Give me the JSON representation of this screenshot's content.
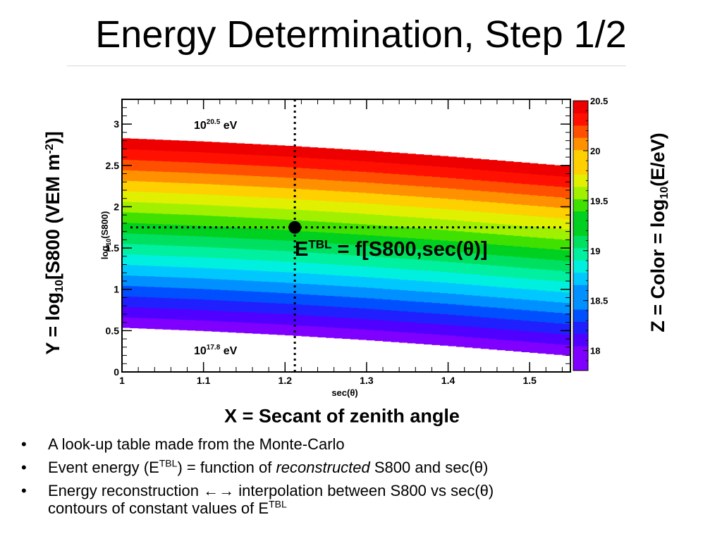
{
  "slide": {
    "title": "Energy Determination, Step 1/2",
    "y_axis_big": {
      "pre": "Y = log",
      "sub": "10",
      "mid": "[S800 (VEM m",
      "sup": "-2",
      "post": ")]"
    },
    "z_axis_big": {
      "pre": "Z = Color = log",
      "sub": "10",
      "post": "(E/eV)"
    },
    "x_axis_big": "X = Secant of zenith angle",
    "formula": {
      "pre": "E",
      "sup": "TBL",
      "post": " = f[S800,sec(θ)]"
    },
    "bullet_marker": "•",
    "bullets": [
      {
        "parts": [
          "A look-up table made from the Monte-Carlo"
        ]
      },
      {
        "a": "Event energy (E",
        "a_sup": "TBL",
        "b": ") =  function of ",
        "b_em": "reconstructed",
        "c": " S800 and sec(θ)"
      },
      {
        "a": "Energy reconstruction ",
        "arrows": "←→",
        "b": " interpolation between S800 vs sec(θ)",
        "c": "contours of constant values of E",
        "c_sup": "TBL"
      }
    ]
  },
  "chart_data": {
    "type": "heatmap",
    "xlabel": "sec(θ)",
    "ylabel": "log10(S800)",
    "xlim": [
      1,
      1.55
    ],
    "ylim": [
      0,
      3.3
    ],
    "x_ticks": [
      1,
      1.1,
      1.2,
      1.3,
      1.4,
      1.5
    ],
    "y_ticks": [
      0,
      0.5,
      1,
      1.5,
      2,
      2.5,
      3
    ],
    "x_tick_labels": [
      "1",
      "1.1",
      "1.2",
      "1.3",
      "1.4",
      "1.5"
    ],
    "y_tick_labels": [
      "0",
      "0.5",
      "1",
      "1.5",
      "2",
      "2.5",
      "3"
    ],
    "y_label_parts": {
      "pre": "log",
      "sub": "10",
      "post": "(S800)"
    },
    "x_label_text": "sec(θ)",
    "z_range": [
      17.8,
      20.5
    ],
    "z_ticks": [
      18,
      18.5,
      19,
      19.5,
      20,
      20.5
    ],
    "z_tick_labels": [
      "18",
      "18.5",
      "19",
      "19.5",
      "20",
      "20.5"
    ],
    "upper_boundary": {
      "x": [
        1.0,
        1.1,
        1.2,
        1.3,
        1.4,
        1.5,
        1.55
      ],
      "y": [
        2.83,
        2.79,
        2.74,
        2.68,
        2.61,
        2.53,
        2.49
      ]
    },
    "lower_boundary": {
      "x": [
        1.0,
        1.1,
        1.2,
        1.3,
        1.4,
        1.5,
        1.55
      ],
      "y": [
        0.54,
        0.5,
        0.45,
        0.39,
        0.32,
        0.24,
        0.2
      ]
    },
    "top_annotation": {
      "base": "10",
      "exp": "20.5",
      "unit": " eV"
    },
    "bottom_annotation": {
      "base": "10",
      "exp": "17.8",
      "unit": " eV"
    },
    "marker": {
      "x": 1.212,
      "y": 1.75
    },
    "grid": false,
    "colormap": [
      "#8000ff",
      "#5000ff",
      "#2020ff",
      "#0050ff",
      "#0090ff",
      "#00c8ff",
      "#00f0e0",
      "#00f0a0",
      "#00e060",
      "#00d020",
      "#40e000",
      "#a0f000",
      "#e0f000",
      "#ffd000",
      "#ff9000",
      "#ff5000",
      "#ff1000",
      "#ee0000"
    ]
  }
}
